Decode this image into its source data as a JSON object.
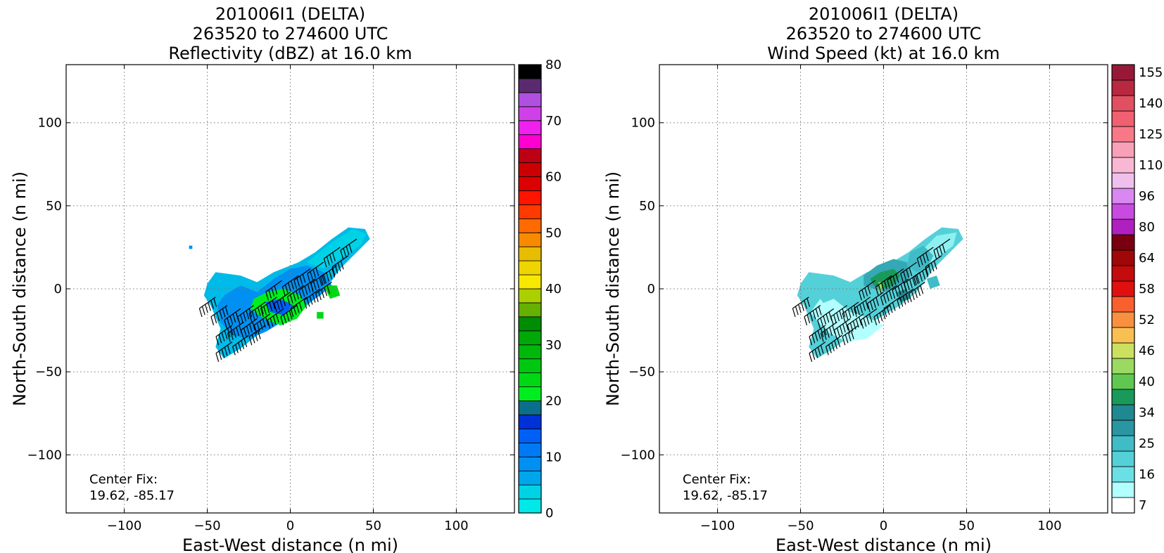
{
  "chart_data": [
    {
      "type": "heatmap",
      "title_lines": [
        "201006I1 (DELTA)",
        "263520 to 274600 UTC",
        "Reflectivity (dBZ) at 16.0 km"
      ],
      "xlabel": "East-West distance (n mi)",
      "ylabel": "North-South distance (n mi)",
      "xlim": [
        -135,
        135
      ],
      "ylim": [
        -135,
        135
      ],
      "xticks": [
        -100,
        -50,
        0,
        50,
        100
      ],
      "yticks": [
        -100,
        -50,
        0,
        50,
        100
      ],
      "xtick_labels": [
        "−100",
        "−50",
        "0",
        "50",
        "100"
      ],
      "ytick_labels": [
        "−100",
        "−50",
        "0",
        "50",
        "100"
      ],
      "grid": true,
      "annotation_lines": [
        "Center Fix:",
        "19.62, -85.17"
      ],
      "colorbar": {
        "min": 0,
        "max": 80,
        "levels": 32,
        "tick_values": [
          0,
          10,
          20,
          30,
          40,
          50,
          60,
          70,
          80
        ],
        "tick_labels": [
          "0",
          "10",
          "20",
          "30",
          "40",
          "50",
          "60",
          "70",
          "80"
        ],
        "colors": [
          "#00e8e8",
          "#00d2e6",
          "#00bae8",
          "#00a6ec",
          "#0090f2",
          "#007af4",
          "#0060f6",
          "#0048ee",
          "#0030d8",
          "#0a6e8c",
          "#00ee20",
          "#00e41a",
          "#00d814",
          "#00c810",
          "#00b80c",
          "#00a808",
          "#009a06",
          "#008c04",
          "#66b000",
          "#aad000",
          "#ffff00",
          "#f6e800",
          "#eed400",
          "#e8bc00",
          "#f0a000",
          "#f88a00",
          "#ff6a00",
          "#ff3a00",
          "#ff1400",
          "#ee0000",
          "#dc0000",
          "#cc0000",
          "#be0014",
          "#e0007a",
          "#ff00d0",
          "#f020ee",
          "#d040e8",
          "#b050e0",
          "#8a48b8",
          "#5a2a70",
          "#000000"
        ]
      },
      "regions": [
        {
          "value": 5,
          "points": [
            [
              -50,
              3
            ],
            [
              -45,
              10
            ],
            [
              -30,
              8
            ],
            [
              -20,
              4
            ],
            [
              -10,
              10
            ],
            [
              5,
              16
            ],
            [
              15,
              22
            ],
            [
              25,
              30
            ],
            [
              35,
              37
            ],
            [
              45,
              36
            ],
            [
              48,
              30
            ],
            [
              40,
              22
            ],
            [
              30,
              12
            ],
            [
              20,
              -2
            ],
            [
              10,
              -10
            ],
            [
              0,
              -16
            ],
            [
              -10,
              -22
            ],
            [
              -20,
              -28
            ],
            [
              -30,
              -36
            ],
            [
              -40,
              -42
            ],
            [
              -45,
              -35
            ],
            [
              -42,
              -24
            ],
            [
              -48,
              -10
            ],
            [
              -52,
              -4
            ]
          ]
        },
        {
          "value": 3,
          "points": [
            [
              10,
              16
            ],
            [
              25,
              28
            ],
            [
              38,
              36
            ],
            [
              46,
              33
            ],
            [
              42,
              26
            ],
            [
              30,
              18
            ],
            [
              20,
              12
            ]
          ]
        },
        {
          "value": 9,
          "points": [
            [
              -40,
              -4
            ],
            [
              -30,
              2
            ],
            [
              -20,
              -2
            ],
            [
              -10,
              6
            ],
            [
              0,
              12
            ],
            [
              10,
              14
            ],
            [
              20,
              10
            ],
            [
              25,
              2
            ],
            [
              18,
              -4
            ],
            [
              5,
              -12
            ],
            [
              -5,
              -20
            ],
            [
              -15,
              -26
            ],
            [
              -25,
              -30
            ],
            [
              -35,
              -28
            ],
            [
              -42,
              -20
            ],
            [
              -44,
              -10
            ]
          ]
        },
        {
          "value": 8,
          "points": [
            [
              -30,
              0
            ],
            [
              -20,
              -4
            ],
            [
              -10,
              2
            ],
            [
              0,
              6
            ],
            [
              5,
              0
            ],
            [
              -2,
              -10
            ],
            [
              -12,
              -18
            ],
            [
              -24,
              -22
            ],
            [
              -32,
              -14
            ]
          ]
        },
        {
          "value": 20,
          "points": [
            [
              -22,
              -6
            ],
            [
              -14,
              -2
            ],
            [
              -4,
              0
            ],
            [
              6,
              -4
            ],
            [
              10,
              -10
            ],
            [
              4,
              -18
            ],
            [
              -6,
              -22
            ],
            [
              -16,
              -18
            ],
            [
              -24,
              -12
            ]
          ]
        },
        {
          "value": 12,
          "points": [
            [
              -15,
              -8
            ],
            [
              -6,
              -6
            ],
            [
              2,
              -10
            ],
            [
              -4,
              -16
            ],
            [
              -12,
              -14
            ]
          ]
        },
        {
          "value": 24,
          "points": [
            [
              20,
              2
            ],
            [
              28,
              2
            ],
            [
              30,
              -4
            ],
            [
              24,
              -6
            ]
          ]
        },
        {
          "value": 24,
          "points": [
            [
              16,
              -14
            ],
            [
              20,
              -14
            ],
            [
              20,
              -18
            ],
            [
              16,
              -18
            ]
          ]
        },
        {
          "value": 8,
          "points": [
            [
              -61,
              26
            ],
            [
              -59,
              26
            ],
            [
              -59,
              24
            ],
            [
              -61,
              24
            ]
          ]
        }
      ],
      "barbs": [
        [
          -45,
          -5,
          55
        ],
        [
          -38,
          -10,
          55
        ],
        [
          -30,
          -12,
          50
        ],
        [
          -22,
          -10,
          45
        ],
        [
          -15,
          -8,
          50
        ],
        [
          -8,
          -5,
          45
        ],
        [
          0,
          -2,
          40
        ],
        [
          8,
          2,
          40
        ],
        [
          15,
          6,
          45
        ],
        [
          22,
          10,
          50
        ],
        [
          28,
          14,
          45
        ],
        [
          35,
          20,
          40
        ],
        [
          -35,
          -22,
          55
        ],
        [
          -28,
          -20,
          50
        ],
        [
          -20,
          -18,
          45
        ],
        [
          -12,
          -15,
          45
        ],
        [
          -4,
          -12,
          40
        ],
        [
          4,
          -10,
          40
        ],
        [
          10,
          -5,
          35
        ],
        [
          18,
          0,
          40
        ],
        [
          25,
          4,
          45
        ],
        [
          -35,
          -32,
          50
        ],
        [
          -25,
          -28,
          45
        ],
        [
          -15,
          -22,
          40
        ],
        [
          30,
          25,
          40
        ],
        [
          40,
          30,
          35
        ],
        [
          -5,
          5,
          40
        ],
        [
          5,
          8,
          35
        ],
        [
          12,
          12,
          40
        ],
        [
          20,
          16,
          40
        ]
      ]
    },
    {
      "type": "heatmap",
      "title_lines": [
        "201006I1 (DELTA)",
        "263520 to 274600 UTC",
        "Wind Speed (kt) at 16.0 km"
      ],
      "xlabel": "East-West distance (n mi)",
      "ylabel": "North-South distance (n mi)",
      "xlim": [
        -135,
        135
      ],
      "ylim": [
        -135,
        135
      ],
      "xticks": [
        -100,
        -50,
        0,
        50,
        100
      ],
      "yticks": [
        -100,
        -50,
        0,
        50,
        100
      ],
      "xtick_labels": [
        "−100",
        "−50",
        "0",
        "50",
        "100"
      ],
      "ytick_labels": [
        "−100",
        "−50",
        "0",
        "50",
        "100"
      ],
      "grid": true,
      "annotation_lines": [
        "Center Fix:",
        "19.62, -85.17"
      ],
      "colorbar": {
        "min": 7,
        "max": 160,
        "levels": 29,
        "tick_labels": [
          "7",
          "16",
          "25",
          "34",
          "40",
          "46",
          "52",
          "58",
          "64",
          "80",
          "96",
          "110",
          "125",
          "140",
          "155"
        ],
        "tick_slots": [
          0,
          2,
          4,
          6,
          8,
          10,
          12,
          14,
          16,
          18,
          20,
          22,
          24,
          26,
          28
        ],
        "colors": [
          "#ffffff",
          "#b2ffff",
          "#8ef0f0",
          "#6ae0e6",
          "#54d0d8",
          "#40bcc6",
          "#34a8b4",
          "#2a96a2",
          "#208890",
          "#1a9a5a",
          "#30b048",
          "#60c850",
          "#9ada60",
          "#cce060",
          "#f0e060",
          "#f8c050",
          "#f89040",
          "#f86030",
          "#f83020",
          "#e01010",
          "#c40c0c",
          "#a00808",
          "#780010",
          "#9a1060",
          "#b020c0",
          "#c84ae0",
          "#d888f0",
          "#e8a8f0",
          "#f0c0ec",
          "#f8b8d4",
          "#f8a0b8",
          "#f88898",
          "#f87888",
          "#f06070",
          "#e05060",
          "#d03850",
          "#b82840",
          "#981838"
        ]
      },
      "regions": [
        {
          "value": 24,
          "points": [
            [
              -50,
              3
            ],
            [
              -45,
              10
            ],
            [
              -30,
              8
            ],
            [
              -20,
              4
            ],
            [
              -10,
              10
            ],
            [
              5,
              16
            ],
            [
              15,
              22
            ],
            [
              25,
              30
            ],
            [
              35,
              37
            ],
            [
              45,
              36
            ],
            [
              48,
              30
            ],
            [
              40,
              22
            ],
            [
              30,
              12
            ],
            [
              20,
              -2
            ],
            [
              10,
              -10
            ],
            [
              0,
              -16
            ],
            [
              -10,
              -22
            ],
            [
              -20,
              -28
            ],
            [
              -30,
              -36
            ],
            [
              -40,
              -42
            ],
            [
              -45,
              -35
            ],
            [
              -42,
              -24
            ],
            [
              -48,
              -10
            ],
            [
              -52,
              -4
            ]
          ]
        },
        {
          "value": 16,
          "points": [
            [
              20,
              20
            ],
            [
              32,
              32
            ],
            [
              44,
              34
            ],
            [
              42,
              26
            ],
            [
              34,
              20
            ],
            [
              26,
              14
            ]
          ]
        },
        {
          "value": 12,
          "points": [
            [
              -40,
              -10
            ],
            [
              -30,
              -6
            ],
            [
              -20,
              -14
            ],
            [
              -8,
              -18
            ],
            [
              0,
              -22
            ],
            [
              -10,
              -30
            ],
            [
              -22,
              -32
            ],
            [
              -34,
              -26
            ]
          ]
        },
        {
          "value": 12,
          "points": [
            [
              -44,
              -14
            ],
            [
              -38,
              -6
            ],
            [
              -30,
              -18
            ],
            [
              -36,
              -24
            ]
          ]
        },
        {
          "value": 34,
          "points": [
            [
              -12,
              8
            ],
            [
              -4,
              14
            ],
            [
              6,
              18
            ],
            [
              14,
              16
            ],
            [
              16,
              8
            ],
            [
              10,
              2
            ],
            [
              2,
              -2
            ],
            [
              -6,
              0
            ],
            [
              -12,
              2
            ]
          ]
        },
        {
          "value": 44,
          "points": [
            [
              -8,
              6
            ],
            [
              -2,
              10
            ],
            [
              6,
              12
            ],
            [
              10,
              8
            ],
            [
              6,
              2
            ],
            [
              0,
              0
            ],
            [
              -6,
              2
            ]
          ]
        },
        {
          "value": 40,
          "points": [
            [
              8,
              -2
            ],
            [
              14,
              0
            ],
            [
              16,
              -6
            ],
            [
              10,
              -8
            ]
          ]
        },
        {
          "value": 56,
          "points": [
            [
              -3,
              4
            ],
            [
              -1,
              4
            ],
            [
              -1,
              -2
            ],
            [
              -3,
              -2
            ]
          ]
        },
        {
          "value": 30,
          "points": [
            [
              16,
              22
            ],
            [
              24,
              26
            ],
            [
              30,
              20
            ],
            [
              26,
              12
            ],
            [
              20,
              10
            ],
            [
              14,
              14
            ]
          ]
        },
        {
          "value": 30,
          "points": [
            [
              26,
              6
            ],
            [
              32,
              8
            ],
            [
              34,
              2
            ],
            [
              28,
              0
            ]
          ]
        }
      ],
      "barbs": [
        [
          -45,
          -5,
          55
        ],
        [
          -38,
          -10,
          55
        ],
        [
          -30,
          -12,
          50
        ],
        [
          -22,
          -10,
          45
        ],
        [
          -15,
          -8,
          50
        ],
        [
          -8,
          -5,
          45
        ],
        [
          0,
          -2,
          40
        ],
        [
          8,
          2,
          40
        ],
        [
          15,
          6,
          45
        ],
        [
          22,
          10,
          50
        ],
        [
          28,
          14,
          45
        ],
        [
          35,
          20,
          40
        ],
        [
          -35,
          -22,
          55
        ],
        [
          -28,
          -20,
          50
        ],
        [
          -20,
          -18,
          45
        ],
        [
          -12,
          -15,
          45
        ],
        [
          -4,
          -12,
          40
        ],
        [
          4,
          -10,
          40
        ],
        [
          10,
          -5,
          35
        ],
        [
          18,
          0,
          40
        ],
        [
          25,
          4,
          45
        ],
        [
          -35,
          -32,
          50
        ],
        [
          -25,
          -28,
          45
        ],
        [
          -15,
          -22,
          40
        ],
        [
          30,
          25,
          40
        ],
        [
          40,
          30,
          35
        ],
        [
          -5,
          5,
          40
        ],
        [
          5,
          8,
          35
        ],
        [
          12,
          12,
          40
        ],
        [
          20,
          16,
          40
        ]
      ]
    }
  ]
}
